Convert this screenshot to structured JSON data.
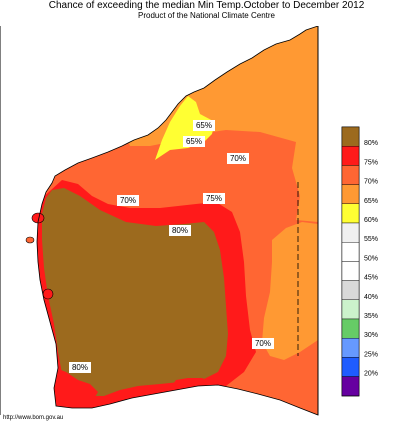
{
  "header": {
    "title": "Chance of exceeding the median Min Temp.October to December 2012",
    "subtitle": "Product of the National Climate Centre"
  },
  "map_labels": [
    "65%",
    "65%",
    "70%",
    "70%",
    "75%",
    "80%",
    "70%",
    "80%"
  ],
  "legend": {
    "items": [
      {
        "label": "80%",
        "color": "#9c6a1e"
      },
      {
        "label": "75%",
        "color": "#ff1a1a"
      },
      {
        "label": "70%",
        "color": "#ff6633"
      },
      {
        "label": "65%",
        "color": "#ff9933"
      },
      {
        "label": "60%",
        "color": "#ffff33"
      },
      {
        "label": "55%",
        "color": "#f0f0f0"
      },
      {
        "label": "50%",
        "color": "#ffffff"
      },
      {
        "label": "45%",
        "color": "#ffffff"
      },
      {
        "label": "40%",
        "color": "#d9d9d9"
      },
      {
        "label": "35%",
        "color": "#ccf2cc"
      },
      {
        "label": "30%",
        "color": "#66cc66"
      },
      {
        "label": "25%",
        "color": "#6699ff"
      },
      {
        "label": "20%",
        "color": "#1f5cff"
      },
      {
        "label": "",
        "color": "#6600a0"
      }
    ]
  },
  "footer": {
    "source": "http://www.bom.gov.au"
  }
}
